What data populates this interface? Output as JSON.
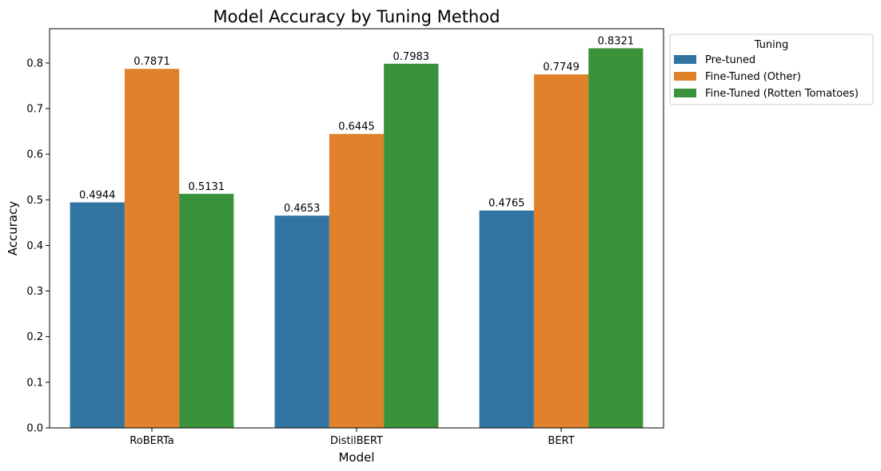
{
  "chart_data": {
    "type": "bar",
    "title": "Model Accuracy by Tuning Method",
    "xlabel": "Model",
    "ylabel": "Accuracy",
    "categories": [
      "RoBERTa",
      "DistilBERT",
      "BERT"
    ],
    "series": [
      {
        "name": "Pre-tuned",
        "color": "#3274a1",
        "values": [
          0.4944,
          0.4653,
          0.4765
        ]
      },
      {
        "name": "Fine-Tuned (Other)",
        "color": "#e1812c",
        "values": [
          0.7871,
          0.6445,
          0.7749
        ]
      },
      {
        "name": "Fine-Tuned (Rotten Tomatoes)",
        "color": "#3a923a",
        "values": [
          0.5131,
          0.7983,
          0.8321
        ]
      }
    ],
    "value_labels": [
      [
        "0.4944",
        "0.4653",
        "0.4765"
      ],
      [
        "0.7871",
        "0.6445",
        "0.7749"
      ],
      [
        "0.5131",
        "0.7983",
        "0.8321"
      ]
    ],
    "ylim": [
      0,
      0.875
    ],
    "yticks": [
      0.0,
      0.1,
      0.2,
      0.3,
      0.4,
      0.5,
      0.6,
      0.7,
      0.8
    ],
    "ytick_labels": [
      "0.0",
      "0.1",
      "0.2",
      "0.3",
      "0.4",
      "0.5",
      "0.6",
      "0.7",
      "0.8"
    ],
    "legend": {
      "title": "Tuning",
      "placement": "outside-upper-right"
    },
    "grid": false
  }
}
